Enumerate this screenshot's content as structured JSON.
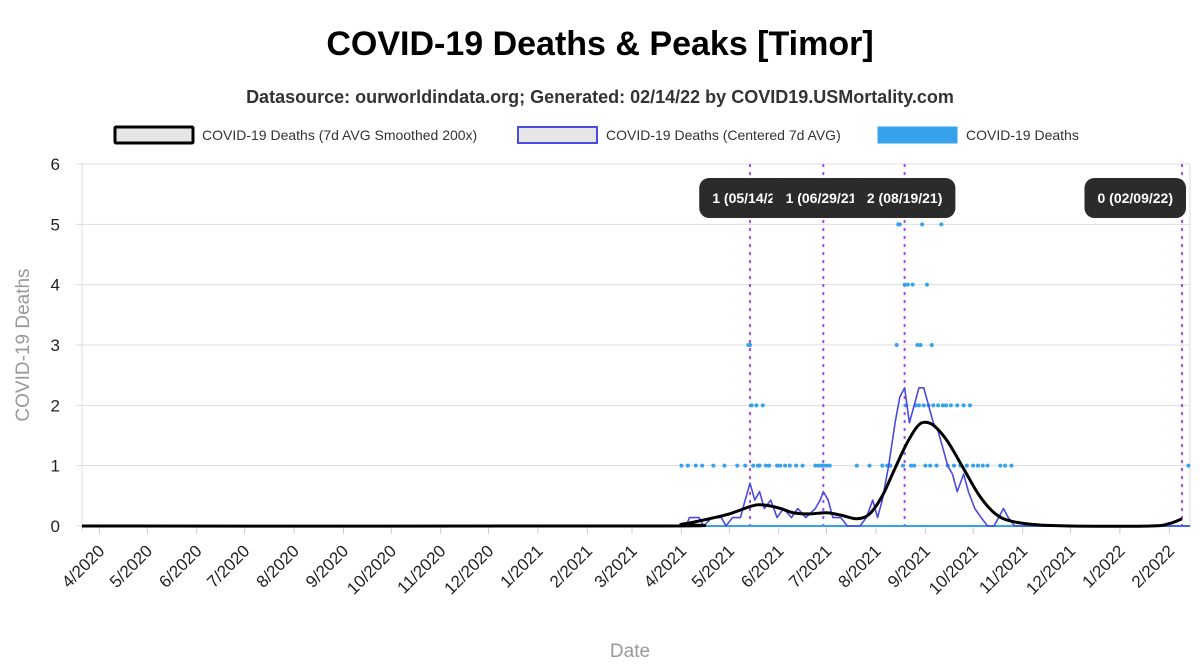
{
  "chart_data": {
    "type": "line",
    "title": "COVID-19 Deaths & Peaks [Timor]",
    "subtitle": "Datasource: ourworldindata.org; Generated: 02/14/22 by COVID19.USMortality.com",
    "xlabel": "Date",
    "ylabel": "COVID-19 Deaths",
    "ylim": [
      0,
      6
    ],
    "yticks": [
      "0",
      "1",
      "2",
      "3",
      "4",
      "5",
      "6"
    ],
    "xrange": [
      "2020-03-21",
      "2022-02-14"
    ],
    "xticks": [
      {
        "date": "2020-04-01",
        "label": "4/2020"
      },
      {
        "date": "2020-05-01",
        "label": "5/2020"
      },
      {
        "date": "2020-06-01",
        "label": "6/2020"
      },
      {
        "date": "2020-07-01",
        "label": "7/2020"
      },
      {
        "date": "2020-08-01",
        "label": "8/2020"
      },
      {
        "date": "2020-09-01",
        "label": "9/2020"
      },
      {
        "date": "2020-10-01",
        "label": "10/2020"
      },
      {
        "date": "2020-11-01",
        "label": "11/2020"
      },
      {
        "date": "2020-12-01",
        "label": "12/2020"
      },
      {
        "date": "2021-01-01",
        "label": "1/2021"
      },
      {
        "date": "2021-02-01",
        "label": "2/2021"
      },
      {
        "date": "2021-03-01",
        "label": "3/2021"
      },
      {
        "date": "2021-04-01",
        "label": "4/2021"
      },
      {
        "date": "2021-05-01",
        "label": "5/2021"
      },
      {
        "date": "2021-06-01",
        "label": "6/2021"
      },
      {
        "date": "2021-07-01",
        "label": "7/2021"
      },
      {
        "date": "2021-08-01",
        "label": "8/2021"
      },
      {
        "date": "2021-09-01",
        "label": "9/2021"
      },
      {
        "date": "2021-10-01",
        "label": "10/2021"
      },
      {
        "date": "2021-11-01",
        "label": "11/2021"
      },
      {
        "date": "2021-12-01",
        "label": "12/2021"
      },
      {
        "date": "2022-01-01",
        "label": "1/2022"
      },
      {
        "date": "2022-02-01",
        "label": "2/2022"
      }
    ],
    "legend": [
      {
        "label": "COVID-19 Deaths (7d AVG Smoothed 200x)",
        "color": "#000000",
        "fill": "#e6e6e6"
      },
      {
        "label": "COVID-19 Deaths (Centered 7d AVG)",
        "color": "#4a4ae0",
        "fill": "#e6e6e6"
      },
      {
        "label": "COVID-19 Deaths",
        "color": "#36a2eb",
        "fill": "#36a2eb"
      }
    ],
    "peaks": [
      {
        "date": "2021-05-14",
        "label": "1 (05/14/21)"
      },
      {
        "date": "2021-06-29",
        "label": "1 (06/29/21)"
      },
      {
        "date": "2021-08-19",
        "label": "2 (08/19/21)"
      },
      {
        "date": "2022-02-09",
        "label": "0 (02/09/22)"
      }
    ],
    "series": [
      {
        "name": "COVID-19 Deaths (7d AVG Smoothed 200x)",
        "color": "#000000",
        "points": [
          [
            "2020-03-21",
            0
          ],
          [
            "2021-03-15",
            0
          ],
          [
            "2021-04-01",
            0.03
          ],
          [
            "2021-04-15",
            0.1
          ],
          [
            "2021-05-01",
            0.2
          ],
          [
            "2021-05-15",
            0.33
          ],
          [
            "2021-05-22",
            0.35
          ],
          [
            "2021-06-01",
            0.3
          ],
          [
            "2021-06-10",
            0.22
          ],
          [
            "2021-06-20",
            0.2
          ],
          [
            "2021-07-01",
            0.22
          ],
          [
            "2021-07-10",
            0.18
          ],
          [
            "2021-07-20",
            0.12
          ],
          [
            "2021-07-28",
            0.2
          ],
          [
            "2021-08-05",
            0.5
          ],
          [
            "2021-08-12",
            0.9
          ],
          [
            "2021-08-20",
            1.35
          ],
          [
            "2021-08-27",
            1.65
          ],
          [
            "2021-09-01",
            1.72
          ],
          [
            "2021-09-07",
            1.65
          ],
          [
            "2021-09-15",
            1.4
          ],
          [
            "2021-09-25",
            0.95
          ],
          [
            "2021-10-05",
            0.5
          ],
          [
            "2021-10-15",
            0.2
          ],
          [
            "2021-10-25",
            0.08
          ],
          [
            "2021-11-10",
            0.02
          ],
          [
            "2021-12-01",
            0
          ],
          [
            "2022-01-20",
            0
          ],
          [
            "2022-02-01",
            0.04
          ],
          [
            "2022-02-09",
            0.12
          ]
        ]
      },
      {
        "name": "COVID-19 Deaths (Centered 7d AVG)",
        "color": "#4a4ae0",
        "points": [
          [
            "2020-03-21",
            0
          ],
          [
            "2021-04-04",
            0
          ],
          [
            "2021-04-06",
            0.14
          ],
          [
            "2021-04-12",
            0.14
          ],
          [
            "2021-04-15",
            0
          ],
          [
            "2021-04-20",
            0.14
          ],
          [
            "2021-04-26",
            0.14
          ],
          [
            "2021-04-29",
            0
          ],
          [
            "2021-05-03",
            0.14
          ],
          [
            "2021-05-08",
            0.14
          ],
          [
            "2021-05-11",
            0.43
          ],
          [
            "2021-05-14",
            0.71
          ],
          [
            "2021-05-17",
            0.43
          ],
          [
            "2021-05-20",
            0.57
          ],
          [
            "2021-05-23",
            0.29
          ],
          [
            "2021-05-27",
            0.43
          ],
          [
            "2021-05-31",
            0.14
          ],
          [
            "2021-06-04",
            0.29
          ],
          [
            "2021-06-09",
            0.14
          ],
          [
            "2021-06-13",
            0.29
          ],
          [
            "2021-06-18",
            0.14
          ],
          [
            "2021-06-24",
            0.29
          ],
          [
            "2021-06-27",
            0.43
          ],
          [
            "2021-06-29",
            0.57
          ],
          [
            "2021-07-02",
            0.43
          ],
          [
            "2021-07-05",
            0.14
          ],
          [
            "2021-07-10",
            0.14
          ],
          [
            "2021-07-14",
            0
          ],
          [
            "2021-07-22",
            0
          ],
          [
            "2021-07-26",
            0.14
          ],
          [
            "2021-07-30",
            0.43
          ],
          [
            "2021-08-02",
            0.14
          ],
          [
            "2021-08-05",
            0.43
          ],
          [
            "2021-08-09",
            1.0
          ],
          [
            "2021-08-13",
            1.71
          ],
          [
            "2021-08-16",
            2.14
          ],
          [
            "2021-08-19",
            2.29
          ],
          [
            "2021-08-22",
            1.71
          ],
          [
            "2021-08-25",
            2.0
          ],
          [
            "2021-08-28",
            2.29
          ],
          [
            "2021-08-31",
            2.29
          ],
          [
            "2021-09-03",
            2.0
          ],
          [
            "2021-09-06",
            1.71
          ],
          [
            "2021-09-09",
            1.57
          ],
          [
            "2021-09-12",
            1.29
          ],
          [
            "2021-09-15",
            1.0
          ],
          [
            "2021-09-18",
            0.86
          ],
          [
            "2021-09-21",
            0.57
          ],
          [
            "2021-09-25",
            0.86
          ],
          [
            "2021-09-28",
            0.57
          ],
          [
            "2021-10-02",
            0.29
          ],
          [
            "2021-10-06",
            0.14
          ],
          [
            "2021-10-10",
            0
          ],
          [
            "2021-10-14",
            0
          ],
          [
            "2021-10-17",
            0.14
          ],
          [
            "2021-10-20",
            0.29
          ],
          [
            "2021-10-23",
            0.14
          ],
          [
            "2021-10-27",
            0
          ],
          [
            "2022-02-14",
            0
          ]
        ]
      }
    ],
    "daily_deaths": {
      "name": "COVID-19 Deaths",
      "color": "#36a2eb",
      "points": [
        [
          "2021-04-01",
          1
        ],
        [
          "2021-04-05",
          1
        ],
        [
          "2021-04-10",
          1
        ],
        [
          "2021-04-14",
          1
        ],
        [
          "2021-04-21",
          1
        ],
        [
          "2021-04-28",
          1
        ],
        [
          "2021-05-06",
          1
        ],
        [
          "2021-05-11",
          1
        ],
        [
          "2021-05-13",
          3
        ],
        [
          "2021-05-14",
          3
        ],
        [
          "2021-05-15",
          2
        ],
        [
          "2021-05-16",
          1
        ],
        [
          "2021-05-18",
          2
        ],
        [
          "2021-05-19",
          1
        ],
        [
          "2021-05-20",
          1
        ],
        [
          "2021-05-22",
          2
        ],
        [
          "2021-05-24",
          1
        ],
        [
          "2021-05-26",
          1
        ],
        [
          "2021-05-31",
          1
        ],
        [
          "2021-06-02",
          1
        ],
        [
          "2021-06-05",
          1
        ],
        [
          "2021-06-08",
          1
        ],
        [
          "2021-06-12",
          1
        ],
        [
          "2021-06-16",
          1
        ],
        [
          "2021-06-24",
          1
        ],
        [
          "2021-06-26",
          1
        ],
        [
          "2021-06-28",
          1
        ],
        [
          "2021-06-29",
          1
        ],
        [
          "2021-07-01",
          1
        ],
        [
          "2021-07-03",
          1
        ],
        [
          "2021-07-20",
          1
        ],
        [
          "2021-07-28",
          1
        ],
        [
          "2021-08-05",
          1
        ],
        [
          "2021-08-08",
          1
        ],
        [
          "2021-08-10",
          1
        ],
        [
          "2021-08-14",
          3
        ],
        [
          "2021-08-15",
          5
        ],
        [
          "2021-08-16",
          5
        ],
        [
          "2021-08-18",
          1
        ],
        [
          "2021-08-19",
          4
        ],
        [
          "2021-08-20",
          2
        ],
        [
          "2021-08-21",
          4
        ],
        [
          "2021-08-23",
          1
        ],
        [
          "2021-08-24",
          4
        ],
        [
          "2021-08-25",
          1
        ],
        [
          "2021-08-26",
          2
        ],
        [
          "2021-08-27",
          3
        ],
        [
          "2021-08-28",
          2
        ],
        [
          "2021-08-29",
          3
        ],
        [
          "2021-08-30",
          5
        ],
        [
          "2021-08-31",
          2
        ],
        [
          "2021-09-01",
          1
        ],
        [
          "2021-09-02",
          4
        ],
        [
          "2021-09-03",
          2
        ],
        [
          "2021-09-04",
          1
        ],
        [
          "2021-09-05",
          3
        ],
        [
          "2021-09-06",
          2
        ],
        [
          "2021-09-08",
          1
        ],
        [
          "2021-09-09",
          2
        ],
        [
          "2021-09-11",
          5
        ],
        [
          "2021-09-12",
          2
        ],
        [
          "2021-09-14",
          2
        ],
        [
          "2021-09-15",
          1
        ],
        [
          "2021-09-17",
          2
        ],
        [
          "2021-09-19",
          1
        ],
        [
          "2021-09-21",
          2
        ],
        [
          "2021-09-23",
          1
        ],
        [
          "2021-09-25",
          2
        ],
        [
          "2021-09-27",
          1
        ],
        [
          "2021-09-29",
          2
        ],
        [
          "2021-10-01",
          1
        ],
        [
          "2021-10-04",
          1
        ],
        [
          "2021-10-07",
          1
        ],
        [
          "2021-10-10",
          1
        ],
        [
          "2021-10-18",
          1
        ],
        [
          "2021-10-21",
          1
        ],
        [
          "2021-10-25",
          1
        ],
        [
          "2022-02-13",
          1
        ]
      ]
    }
  }
}
